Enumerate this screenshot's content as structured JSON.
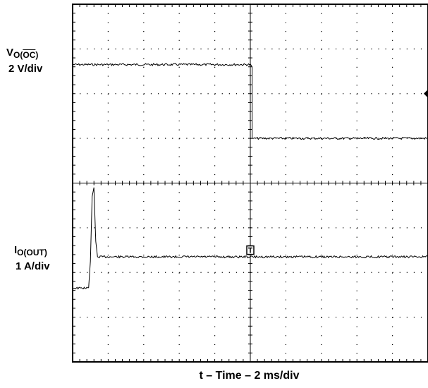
{
  "chart_data": {
    "type": "line",
    "title": "",
    "xlabel": "t – Time – 2 ms/div",
    "grid": true,
    "divisions": {
      "x": 10,
      "y": 8
    },
    "x_unit": "div",
    "xlim": [
      0,
      10
    ],
    "ylim": [
      -4,
      4
    ],
    "series": [
      {
        "label_main": "V",
        "label_sub": "O(",
        "label_sub_overline": "OC",
        "label_sub_end": ")",
        "scale": "2 V/div",
        "points": [
          [
            0,
            2.65
          ],
          [
            5.0,
            2.65
          ],
          [
            5.05,
            2.6
          ],
          [
            5.05,
            1.0
          ],
          [
            5.1,
            1.0
          ],
          [
            10.0,
            1.0
          ]
        ]
      },
      {
        "label_main": "I",
        "label_sub": "O(OUT)",
        "scale": "1 A/div",
        "points": [
          [
            0,
            -2.35
          ],
          [
            0.45,
            -2.35
          ],
          [
            0.5,
            -1.75
          ],
          [
            0.55,
            -0.3
          ],
          [
            0.6,
            -0.1
          ],
          [
            0.65,
            -1.3
          ],
          [
            0.7,
            -1.65
          ],
          [
            10.0,
            -1.65
          ]
        ]
      }
    ],
    "markers": [
      {
        "type": "diamond",
        "x": 10.0,
        "y": 2.0
      },
      {
        "type": "trigger",
        "x": 5.0,
        "y": -1.5
      }
    ]
  }
}
